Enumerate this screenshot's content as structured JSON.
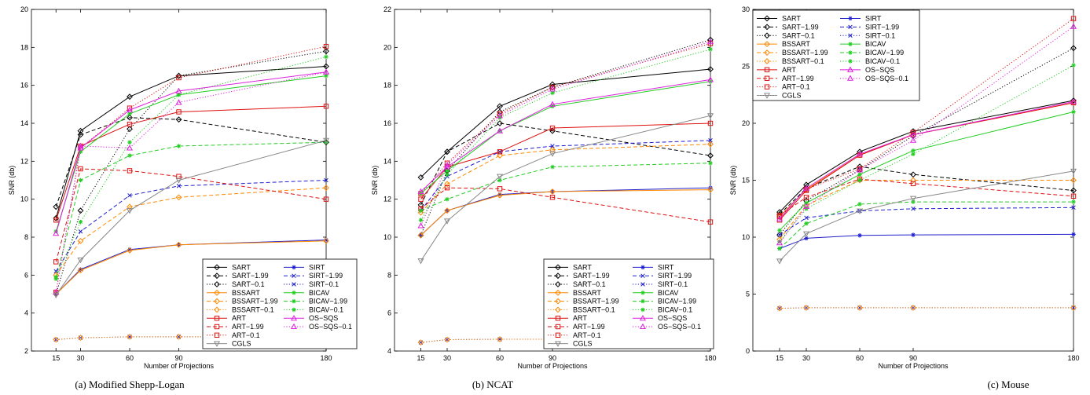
{
  "chart_data": [
    {
      "type": "line",
      "caption": "(a) Modified Shepp-Logan",
      "xlabel": "Number of Projections",
      "ylabel": "SNR (db)",
      "x": [
        15,
        30,
        60,
        90,
        180
      ],
      "xlim": [
        0,
        180
      ],
      "ylim": [
        2,
        20
      ],
      "yticks": [
        2,
        4,
        6,
        8,
        10,
        12,
        14,
        16,
        18,
        20
      ],
      "legend_position": "bottom-right",
      "series": [
        {
          "name": "SART",
          "color": "#000000",
          "style": "solid",
          "marker": "diamond",
          "values": [
            9.0,
            13.6,
            15.4,
            16.5,
            17.0
          ]
        },
        {
          "name": "SART−1.99",
          "color": "#000000",
          "style": "dashed",
          "marker": "diamond",
          "values": [
            9.6,
            13.4,
            14.3,
            14.2,
            13.0
          ]
        },
        {
          "name": "SART−0.1",
          "color": "#000000",
          "style": "dotted",
          "marker": "diamond",
          "values": [
            5.0,
            9.4,
            13.7,
            16.5,
            17.8
          ]
        },
        {
          "name": "SIRT",
          "color": "#1f1fcc",
          "style": "solid",
          "marker": "star",
          "values": [
            5.0,
            6.3,
            7.35,
            7.6,
            7.85
          ]
        },
        {
          "name": "SIRT−1.99",
          "color": "#1f1fcc",
          "style": "dashed",
          "marker": "x",
          "values": [
            6.2,
            8.3,
            10.2,
            10.7,
            11.0
          ]
        },
        {
          "name": "SIRT−0.1",
          "color": "#1f1fcc",
          "style": "dotted",
          "marker": "x",
          "values": [
            2.6,
            2.7,
            2.75,
            2.75,
            2.75
          ]
        },
        {
          "name": "BSSART",
          "color": "#ff8800",
          "style": "solid",
          "marker": "diamond",
          "values": [
            5.0,
            6.25,
            7.3,
            7.6,
            7.8
          ]
        },
        {
          "name": "BSSART−1.99",
          "color": "#ff8800",
          "style": "dashed",
          "marker": "diamond",
          "values": [
            6.0,
            7.8,
            9.6,
            10.1,
            10.6
          ]
        },
        {
          "name": "BSSART−0.1",
          "color": "#ff8800",
          "style": "dotted",
          "marker": "diamond",
          "values": [
            2.6,
            2.7,
            2.75,
            2.75,
            2.75
          ]
        },
        {
          "name": "ART",
          "color": "#dd1111",
          "style": "solid",
          "marker": "square",
          "values": [
            8.9,
            12.8,
            13.95,
            14.6,
            14.9
          ]
        },
        {
          "name": "ART−1.99",
          "color": "#dd1111",
          "style": "dashed",
          "marker": "square",
          "values": [
            6.7,
            11.6,
            11.5,
            11.2,
            10.0
          ]
        },
        {
          "name": "ART−0.1",
          "color": "#dd1111",
          "style": "dotted",
          "marker": "square",
          "values": [
            5.1,
            12.7,
            14.8,
            16.4,
            18.05
          ]
        },
        {
          "name": "BICAV",
          "color": "#22cc22",
          "style": "solid",
          "marker": "star",
          "values": [
            8.3,
            12.5,
            14.5,
            15.5,
            16.5
          ]
        },
        {
          "name": "BICAV−1.99",
          "color": "#22cc22",
          "style": "dashed",
          "marker": "star",
          "values": [
            5.8,
            11.0,
            12.3,
            12.8,
            13.0
          ]
        },
        {
          "name": "BICAV−0.1",
          "color": "#22cc22",
          "style": "dotted",
          "marker": "star",
          "values": [
            5.9,
            8.8,
            13.0,
            15.5,
            17.5
          ]
        },
        {
          "name": "OS−SQS",
          "color": "#dd22dd",
          "style": "solid",
          "marker": "triangle",
          "values": [
            8.2,
            12.7,
            14.7,
            15.7,
            16.7
          ]
        },
        {
          "name": "OS−SQS−0.1",
          "color": "#dd22dd",
          "style": "dotted",
          "marker": "triangle",
          "values": [
            5.1,
            12.8,
            12.7,
            15.1,
            16.7
          ]
        },
        {
          "name": "CGLS",
          "color": "#888888",
          "style": "solid",
          "marker": "triangle-down",
          "values": [
            4.95,
            6.8,
            9.4,
            11.0,
            13.1
          ]
        }
      ]
    },
    {
      "type": "line",
      "caption": "(b) NCAT",
      "xlabel": "Number of Projections",
      "ylabel": "SNR (db)",
      "x": [
        15,
        30,
        60,
        90,
        180
      ],
      "xlim": [
        0,
        180
      ],
      "ylim": [
        4,
        22
      ],
      "yticks": [
        4,
        6,
        8,
        10,
        12,
        14,
        16,
        18,
        20,
        22
      ],
      "legend_position": "bottom-right",
      "series": [
        {
          "name": "SART",
          "color": "#000000",
          "style": "solid",
          "marker": "diamond",
          "values": [
            13.15,
            14.5,
            16.9,
            18.05,
            18.85
          ]
        },
        {
          "name": "SART−1.99",
          "color": "#000000",
          "style": "dashed",
          "marker": "diamond",
          "values": [
            11.7,
            14.5,
            16.0,
            15.6,
            14.3
          ]
        },
        {
          "name": "SART−0.1",
          "color": "#000000",
          "style": "dotted",
          "marker": "diamond",
          "values": [
            10.1,
            13.5,
            16.6,
            17.9,
            20.4
          ]
        },
        {
          "name": "SIRT",
          "color": "#1f1fcc",
          "style": "solid",
          "marker": "star",
          "values": [
            10.1,
            11.4,
            12.25,
            12.4,
            12.6
          ]
        },
        {
          "name": "SIRT−1.99",
          "color": "#1f1fcc",
          "style": "dashed",
          "marker": "x",
          "values": [
            11.4,
            13.2,
            14.5,
            14.8,
            15.1
          ]
        },
        {
          "name": "SIRT−0.1",
          "color": "#1f1fcc",
          "style": "dotted",
          "marker": "x",
          "values": [
            4.45,
            4.6,
            4.62,
            4.62,
            4.62
          ]
        },
        {
          "name": "BSSART",
          "color": "#ff8800",
          "style": "solid",
          "marker": "diamond",
          "values": [
            10.1,
            11.4,
            12.2,
            12.4,
            12.5
          ]
        },
        {
          "name": "BSSART−1.99",
          "color": "#ff8800",
          "style": "dashed",
          "marker": "diamond",
          "values": [
            11.3,
            12.8,
            14.3,
            14.6,
            14.9
          ]
        },
        {
          "name": "BSSART−0.1",
          "color": "#ff8800",
          "style": "dotted",
          "marker": "diamond",
          "values": [
            4.45,
            4.6,
            4.62,
            4.62,
            4.62
          ]
        },
        {
          "name": "ART",
          "color": "#dd1111",
          "style": "solid",
          "marker": "square",
          "values": [
            12.0,
            13.7,
            14.5,
            15.75,
            16.0
          ]
        },
        {
          "name": "ART−1.99",
          "color": "#dd1111",
          "style": "dashed",
          "marker": "square",
          "values": [
            11.5,
            12.6,
            12.55,
            12.1,
            10.8
          ]
        },
        {
          "name": "ART−0.1",
          "color": "#dd1111",
          "style": "dotted",
          "marker": "square",
          "values": [
            12.3,
            13.9,
            16.5,
            17.9,
            20.2
          ]
        },
        {
          "name": "BICAV",
          "color": "#22cc22",
          "style": "solid",
          "marker": "star",
          "values": [
            12.3,
            13.5,
            15.6,
            16.9,
            18.2
          ]
        },
        {
          "name": "BICAV−1.99",
          "color": "#22cc22",
          "style": "dashed",
          "marker": "star",
          "values": [
            11.4,
            12.0,
            13.0,
            13.7,
            13.9
          ]
        },
        {
          "name": "BICAV−0.1",
          "color": "#22cc22",
          "style": "dotted",
          "marker": "star",
          "values": [
            10.9,
            13.3,
            16.3,
            17.6,
            19.9
          ]
        },
        {
          "name": "OS−SQS",
          "color": "#dd22dd",
          "style": "solid",
          "marker": "triangle",
          "values": [
            12.4,
            13.7,
            15.6,
            17.0,
            18.3
          ]
        },
        {
          "name": "OS−SQS−0.1",
          "color": "#dd22dd",
          "style": "dotted",
          "marker": "triangle",
          "values": [
            10.6,
            13.8,
            16.4,
            17.8,
            20.3
          ]
        },
        {
          "name": "CGLS",
          "color": "#888888",
          "style": "solid",
          "marker": "triangle-down",
          "values": [
            8.75,
            10.85,
            13.2,
            14.4,
            16.4
          ]
        }
      ]
    },
    {
      "type": "line",
      "caption": "(c) Mouse",
      "xlabel": "Number of Projections",
      "ylabel": "SNR (db)",
      "x": [
        15,
        30,
        60,
        90,
        180
      ],
      "xlim": [
        0,
        180
      ],
      "ylim": [
        0,
        30
      ],
      "yticks": [
        0,
        5,
        10,
        15,
        20,
        25,
        30
      ],
      "legend_position": "top-left",
      "series": [
        {
          "name": "SART",
          "color": "#000000",
          "style": "solid",
          "marker": "diamond",
          "values": [
            12.2,
            14.6,
            17.5,
            19.3,
            22.0
          ]
        },
        {
          "name": "SART−1.99",
          "color": "#000000",
          "style": "dashed",
          "marker": "diamond",
          "values": [
            12.0,
            14.3,
            16.2,
            15.5,
            14.1
          ]
        },
        {
          "name": "SART−0.1",
          "color": "#000000",
          "style": "dotted",
          "marker": "diamond",
          "values": [
            10.2,
            13.2,
            15.9,
            18.9,
            26.6
          ]
        },
        {
          "name": "SIRT",
          "color": "#1f1fcc",
          "style": "solid",
          "marker": "star",
          "values": [
            9.0,
            9.9,
            10.15,
            10.2,
            10.25
          ]
        },
        {
          "name": "SIRT−1.99",
          "color": "#1f1fcc",
          "style": "dashed",
          "marker": "x",
          "values": [
            10.2,
            11.7,
            12.3,
            12.5,
            12.6
          ]
        },
        {
          "name": "SIRT−0.1",
          "color": "#1f1fcc",
          "style": "dotted",
          "marker": "x",
          "values": [
            3.75,
            3.8,
            3.8,
            3.8,
            3.8
          ]
        },
        {
          "name": "BSSART",
          "color": "#ff8800",
          "style": "solid",
          "marker": "diamond",
          "values": [
            11.8,
            14.2,
            17.2,
            19.0,
            21.8
          ]
        },
        {
          "name": "BSSART−1.99",
          "color": "#ff8800",
          "style": "dashed",
          "marker": "diamond",
          "values": [
            9.8,
            12.8,
            15.0,
            15.0,
            15.0
          ]
        },
        {
          "name": "BSSART−0.1",
          "color": "#ff8800",
          "style": "dotted",
          "marker": "diamond",
          "values": [
            3.75,
            3.8,
            3.8,
            3.8,
            3.8
          ]
        },
        {
          "name": "ART",
          "color": "#dd1111",
          "style": "solid",
          "marker": "square",
          "values": [
            11.5,
            14.1,
            17.2,
            19.0,
            21.8
          ]
        },
        {
          "name": "ART−1.99",
          "color": "#dd1111",
          "style": "dashed",
          "marker": "square",
          "values": [
            11.9,
            13.5,
            15.1,
            14.7,
            13.6
          ]
        },
        {
          "name": "ART−0.1",
          "color": "#dd1111",
          "style": "dotted",
          "marker": "square",
          "values": [
            11.8,
            14.2,
            16.0,
            19.2,
            29.2
          ]
        },
        {
          "name": "BICAV",
          "color": "#22cc22",
          "style": "solid",
          "marker": "star",
          "values": [
            10.6,
            13.0,
            15.5,
            17.6,
            21.0
          ]
        },
        {
          "name": "BICAV−1.99",
          "color": "#22cc22",
          "style": "dashed",
          "marker": "star",
          "values": [
            9.0,
            11.2,
            12.9,
            13.1,
            13.1
          ]
        },
        {
          "name": "BICAV−0.1",
          "color": "#22cc22",
          "style": "dotted",
          "marker": "star",
          "values": [
            9.6,
            12.5,
            15.0,
            17.3,
            25.1
          ]
        },
        {
          "name": "OS−SQS",
          "color": "#dd22dd",
          "style": "solid",
          "marker": "triangle",
          "values": [
            11.6,
            14.3,
            17.3,
            19.0,
            21.9
          ]
        },
        {
          "name": "OS−SQS−0.1",
          "color": "#dd22dd",
          "style": "dotted",
          "marker": "triangle",
          "values": [
            9.5,
            12.7,
            15.9,
            18.5,
            28.5
          ]
        },
        {
          "name": "CGLS",
          "color": "#888888",
          "style": "solid",
          "marker": "triangle-down",
          "values": [
            7.9,
            10.3,
            12.3,
            13.4,
            15.8
          ]
        }
      ]
    }
  ]
}
